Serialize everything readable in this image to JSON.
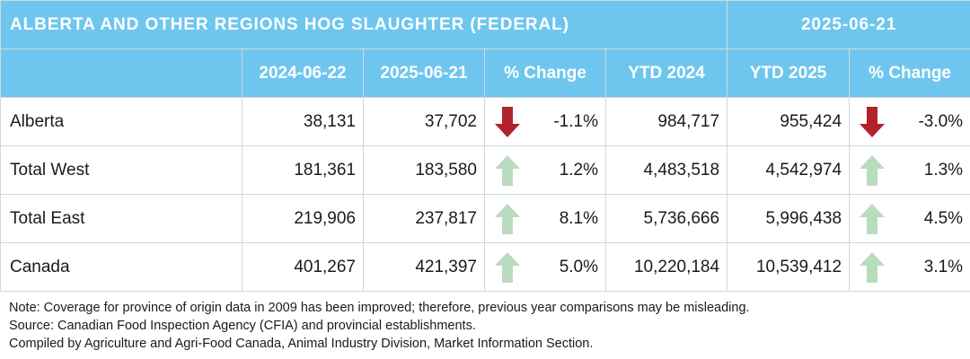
{
  "title": "ALBERTA AND OTHER REGIONS HOG SLAUGHTER (FEDERAL)",
  "report_date": "2025-06-21",
  "columns": [
    "",
    "2024-06-22",
    "2025-06-21",
    "% Change",
    "YTD 2024",
    "YTD 2025",
    "% Change"
  ],
  "rows": [
    {
      "label": "Alberta",
      "v2024": "38,131",
      "v2025": "37,702",
      "pct": "-1.1%",
      "pct_dir": "down",
      "ytd2024": "984,717",
      "ytd2025": "955,424",
      "ytd_pct": "-3.0%",
      "ytd_dir": "down"
    },
    {
      "label": "Total West",
      "v2024": "181,361",
      "v2025": "183,580",
      "pct": "1.2%",
      "pct_dir": "up",
      "ytd2024": "4,483,518",
      "ytd2025": "4,542,974",
      "ytd_pct": "1.3%",
      "ytd_dir": "up"
    },
    {
      "label": "Total East",
      "v2024": "219,906",
      "v2025": "237,817",
      "pct": "8.1%",
      "pct_dir": "up",
      "ytd2024": "5,736,666",
      "ytd2025": "5,996,438",
      "ytd_pct": "4.5%",
      "ytd_dir": "up"
    },
    {
      "label": "Canada",
      "v2024": "401,267",
      "v2025": "421,397",
      "pct": "5.0%",
      "pct_dir": "up",
      "ytd2024": "10,220,184",
      "ytd2025": "10,539,412",
      "ytd_pct": "3.1%",
      "ytd_dir": "up"
    }
  ],
  "notes": [
    "Note: Coverage for province of origin data in 2009 has been improved; therefore, previous year comparisons may be misleading.",
    "Source: Canadian Food Inspection Agency (CFIA) and provincial establishments.",
    "Compiled by Agriculture and Agri-Food Canada, Animal Industry Division, Market Information Section."
  ],
  "colors": {
    "header_bg": "#6ec6ef",
    "up_arrow": "#b9dcbf",
    "down_arrow": "#b3222a"
  }
}
